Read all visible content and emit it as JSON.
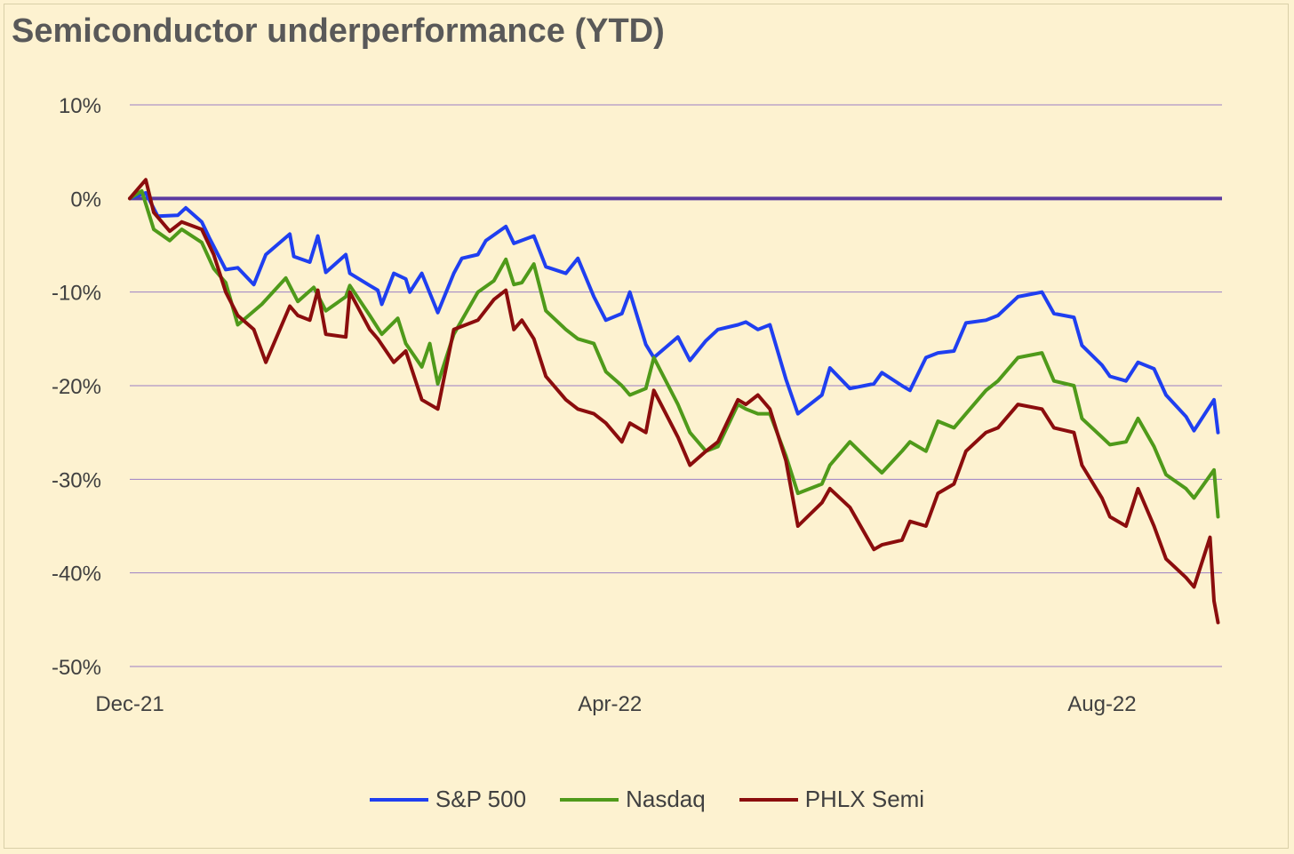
{
  "chart_data": {
    "type": "line",
    "title": "Semiconductor underperformance (YTD)",
    "xlabel": "",
    "ylabel": "",
    "ylim": [
      -50,
      10
    ],
    "y_ticks": [
      "10%",
      "0%",
      "-10%",
      "-20%",
      "-30%",
      "-40%",
      "-50%"
    ],
    "x_ticks": [
      "Dec-21",
      "Apr-22",
      "Aug-22"
    ],
    "x_range": [
      "2021-12-31",
      "2022-09-30"
    ],
    "baseline": 0,
    "grid": true,
    "legend_position": "bottom",
    "series": [
      {
        "name": "S&P 500",
        "color": "#1f3ff0",
        "points": [
          [
            "2021-12-31",
            0
          ],
          [
            "2022-01-04",
            0.6
          ],
          [
            "2022-01-07",
            -1.9
          ],
          [
            "2022-01-12",
            -1.8
          ],
          [
            "2022-01-14",
            -1.0
          ],
          [
            "2022-01-18",
            -2.5
          ],
          [
            "2022-01-20",
            -4.3
          ],
          [
            "2022-01-24",
            -7.6
          ],
          [
            "2022-01-27",
            -7.4
          ],
          [
            "2022-01-31",
            -9.2
          ],
          [
            "2022-02-03",
            -6.0
          ],
          [
            "2022-02-09",
            -3.8
          ],
          [
            "2022-02-10",
            -6.2
          ],
          [
            "2022-02-14",
            -6.8
          ],
          [
            "2022-02-16",
            -4.0
          ],
          [
            "2022-02-18",
            -7.9
          ],
          [
            "2022-02-23",
            -6.0
          ],
          [
            "2022-02-24",
            -8.0
          ],
          [
            "2022-03-01",
            -9.3
          ],
          [
            "2022-03-03",
            -9.8
          ],
          [
            "2022-03-04",
            -11.3
          ],
          [
            "2022-03-07",
            -8.0
          ],
          [
            "2022-03-10",
            -8.6
          ],
          [
            "2022-03-11",
            -10.0
          ],
          [
            "2022-03-14",
            -8.0
          ],
          [
            "2022-03-18",
            -12.2
          ],
          [
            "2022-03-22",
            -8.0
          ],
          [
            "2022-03-24",
            -6.4
          ],
          [
            "2022-03-28",
            -6.0
          ],
          [
            "2022-03-30",
            -4.5
          ],
          [
            "2022-04-04",
            -3.0
          ],
          [
            "2022-04-06",
            -4.8
          ],
          [
            "2022-04-11",
            -4.0
          ],
          [
            "2022-04-14",
            -7.3
          ],
          [
            "2022-04-19",
            -8.0
          ],
          [
            "2022-04-22",
            -6.4
          ],
          [
            "2022-04-26",
            -10.5
          ],
          [
            "2022-04-29",
            -13.0
          ],
          [
            "2022-05-03",
            -12.3
          ],
          [
            "2022-05-05",
            -10.0
          ],
          [
            "2022-05-09",
            -15.6
          ],
          [
            "2022-05-11",
            -17.0
          ],
          [
            "2022-05-17",
            -14.8
          ],
          [
            "2022-05-20",
            -17.3
          ],
          [
            "2022-05-24",
            -15.2
          ],
          [
            "2022-05-27",
            -14.0
          ],
          [
            "2022-06-01",
            -13.5
          ],
          [
            "2022-06-03",
            -13.2
          ],
          [
            "2022-06-06",
            -14.0
          ],
          [
            "2022-06-09",
            -13.5
          ],
          [
            "2022-06-13",
            -19.3
          ],
          [
            "2022-06-16",
            -23.0
          ],
          [
            "2022-06-22",
            -21.0
          ],
          [
            "2022-06-24",
            -18.1
          ],
          [
            "2022-06-29",
            -20.3
          ],
          [
            "2022-07-05",
            -19.8
          ],
          [
            "2022-07-07",
            -18.6
          ],
          [
            "2022-07-12",
            -20.0
          ],
          [
            "2022-07-14",
            -20.5
          ],
          [
            "2022-07-18",
            -17.0
          ],
          [
            "2022-07-21",
            -16.5
          ],
          [
            "2022-07-25",
            -16.3
          ],
          [
            "2022-07-28",
            -13.3
          ],
          [
            "2022-08-02",
            -13.0
          ],
          [
            "2022-08-05",
            -12.5
          ],
          [
            "2022-08-10",
            -10.5
          ],
          [
            "2022-08-16",
            -10.0
          ],
          [
            "2022-08-19",
            -12.3
          ],
          [
            "2022-08-24",
            -12.7
          ],
          [
            "2022-08-26",
            -15.7
          ],
          [
            "2022-08-31",
            -17.8
          ],
          [
            "2022-09-02",
            -19.0
          ],
          [
            "2022-09-06",
            -19.5
          ],
          [
            "2022-09-09",
            -17.5
          ],
          [
            "2022-09-13",
            -18.2
          ],
          [
            "2022-09-16",
            -21.0
          ],
          [
            "2022-09-21",
            -23.3
          ],
          [
            "2022-09-23",
            -24.8
          ],
          [
            "2022-09-28",
            -21.5
          ],
          [
            "2022-09-29",
            -25.0
          ]
        ]
      },
      {
        "name": "Nasdaq",
        "color": "#4f9a1a",
        "points": [
          [
            "2021-12-31",
            0
          ],
          [
            "2022-01-03",
            0.8
          ],
          [
            "2022-01-06",
            -3.3
          ],
          [
            "2022-01-10",
            -4.5
          ],
          [
            "2022-01-13",
            -3.3
          ],
          [
            "2022-01-18",
            -4.7
          ],
          [
            "2022-01-21",
            -7.5
          ],
          [
            "2022-01-24",
            -9.0
          ],
          [
            "2022-01-27",
            -13.5
          ],
          [
            "2022-02-02",
            -11.3
          ],
          [
            "2022-02-08",
            -8.5
          ],
          [
            "2022-02-11",
            -11.0
          ],
          [
            "2022-02-15",
            -9.5
          ],
          [
            "2022-02-18",
            -12.0
          ],
          [
            "2022-02-23",
            -10.5
          ],
          [
            "2022-02-24",
            -9.3
          ],
          [
            "2022-03-01",
            -12.5
          ],
          [
            "2022-03-04",
            -14.5
          ],
          [
            "2022-03-08",
            -12.8
          ],
          [
            "2022-03-10",
            -15.5
          ],
          [
            "2022-03-14",
            -18.0
          ],
          [
            "2022-03-16",
            -15.5
          ],
          [
            "2022-03-18",
            -19.8
          ],
          [
            "2022-03-22",
            -14.5
          ],
          [
            "2022-03-28",
            -10.0
          ],
          [
            "2022-04-01",
            -8.8
          ],
          [
            "2022-04-04",
            -6.5
          ],
          [
            "2022-04-06",
            -9.2
          ],
          [
            "2022-04-08",
            -9.0
          ],
          [
            "2022-04-11",
            -7.0
          ],
          [
            "2022-04-14",
            -12.0
          ],
          [
            "2022-04-19",
            -14.0
          ],
          [
            "2022-04-22",
            -15.0
          ],
          [
            "2022-04-26",
            -15.5
          ],
          [
            "2022-04-29",
            -18.5
          ],
          [
            "2022-05-03",
            -20.0
          ],
          [
            "2022-05-05",
            -21.0
          ],
          [
            "2022-05-09",
            -20.3
          ],
          [
            "2022-05-11",
            -17.0
          ],
          [
            "2022-05-17",
            -22.0
          ],
          [
            "2022-05-20",
            -25.0
          ],
          [
            "2022-05-24",
            -27.0
          ],
          [
            "2022-05-27",
            -26.5
          ],
          [
            "2022-06-01",
            -22.0
          ],
          [
            "2022-06-03",
            -22.5
          ],
          [
            "2022-06-06",
            -23.0
          ],
          [
            "2022-06-09",
            -23.0
          ],
          [
            "2022-06-13",
            -27.5
          ],
          [
            "2022-06-16",
            -31.5
          ],
          [
            "2022-06-22",
            -30.5
          ],
          [
            "2022-06-24",
            -28.5
          ],
          [
            "2022-06-29",
            -26.0
          ],
          [
            "2022-07-05",
            -28.5
          ],
          [
            "2022-07-07",
            -29.3
          ],
          [
            "2022-07-12",
            -27.0
          ],
          [
            "2022-07-14",
            -26.0
          ],
          [
            "2022-07-18",
            -27.0
          ],
          [
            "2022-07-21",
            -23.8
          ],
          [
            "2022-07-25",
            -24.5
          ],
          [
            "2022-07-28",
            -23.0
          ],
          [
            "2022-08-02",
            -20.5
          ],
          [
            "2022-08-05",
            -19.5
          ],
          [
            "2022-08-10",
            -17.0
          ],
          [
            "2022-08-16",
            -16.5
          ],
          [
            "2022-08-19",
            -19.5
          ],
          [
            "2022-08-24",
            -20.0
          ],
          [
            "2022-08-26",
            -23.5
          ],
          [
            "2022-08-31",
            -25.5
          ],
          [
            "2022-09-02",
            -26.3
          ],
          [
            "2022-09-06",
            -26.0
          ],
          [
            "2022-09-09",
            -23.5
          ],
          [
            "2022-09-13",
            -26.5
          ],
          [
            "2022-09-16",
            -29.5
          ],
          [
            "2022-09-21",
            -31.0
          ],
          [
            "2022-09-23",
            -32.0
          ],
          [
            "2022-09-28",
            -29.0
          ],
          [
            "2022-09-29",
            -34.0
          ]
        ]
      },
      {
        "name": "PHLX Semi",
        "color": "#8b0d0d",
        "points": [
          [
            "2021-12-31",
            0
          ],
          [
            "2022-01-04",
            2.0
          ],
          [
            "2022-01-06",
            -1.5
          ],
          [
            "2022-01-10",
            -3.5
          ],
          [
            "2022-01-13",
            -2.5
          ],
          [
            "2022-01-18",
            -3.3
          ],
          [
            "2022-01-21",
            -6.0
          ],
          [
            "2022-01-24",
            -10.0
          ],
          [
            "2022-01-27",
            -12.5
          ],
          [
            "2022-01-31",
            -14.0
          ],
          [
            "2022-02-03",
            -17.5
          ],
          [
            "2022-02-09",
            -11.5
          ],
          [
            "2022-02-11",
            -12.5
          ],
          [
            "2022-02-14",
            -13.0
          ],
          [
            "2022-02-16",
            -9.8
          ],
          [
            "2022-02-18",
            -14.5
          ],
          [
            "2022-02-23",
            -14.8
          ],
          [
            "2022-02-24",
            -10.0
          ],
          [
            "2022-03-01",
            -14.0
          ],
          [
            "2022-03-03",
            -15.0
          ],
          [
            "2022-03-07",
            -17.5
          ],
          [
            "2022-03-10",
            -16.3
          ],
          [
            "2022-03-14",
            -21.5
          ],
          [
            "2022-03-18",
            -22.5
          ],
          [
            "2022-03-22",
            -14.0
          ],
          [
            "2022-03-28",
            -13.0
          ],
          [
            "2022-04-01",
            -10.8
          ],
          [
            "2022-04-04",
            -9.8
          ],
          [
            "2022-04-06",
            -14.0
          ],
          [
            "2022-04-08",
            -13.0
          ],
          [
            "2022-04-11",
            -15.0
          ],
          [
            "2022-04-14",
            -19.0
          ],
          [
            "2022-04-19",
            -21.5
          ],
          [
            "2022-04-22",
            -22.5
          ],
          [
            "2022-04-26",
            -23.0
          ],
          [
            "2022-04-29",
            -24.0
          ],
          [
            "2022-05-03",
            -26.0
          ],
          [
            "2022-05-05",
            -24.0
          ],
          [
            "2022-05-09",
            -25.0
          ],
          [
            "2022-05-11",
            -20.5
          ],
          [
            "2022-05-17",
            -25.5
          ],
          [
            "2022-05-20",
            -28.5
          ],
          [
            "2022-05-24",
            -27.0
          ],
          [
            "2022-05-27",
            -26.0
          ],
          [
            "2022-06-01",
            -21.5
          ],
          [
            "2022-06-03",
            -22.0
          ],
          [
            "2022-06-06",
            -21.0
          ],
          [
            "2022-06-09",
            -22.5
          ],
          [
            "2022-06-13",
            -28.0
          ],
          [
            "2022-06-16",
            -35.0
          ],
          [
            "2022-06-22",
            -32.5
          ],
          [
            "2022-06-24",
            -31.0
          ],
          [
            "2022-06-29",
            -33.0
          ],
          [
            "2022-07-05",
            -37.5
          ],
          [
            "2022-07-07",
            -37.0
          ],
          [
            "2022-07-12",
            -36.5
          ],
          [
            "2022-07-14",
            -34.5
          ],
          [
            "2022-07-18",
            -35.0
          ],
          [
            "2022-07-21",
            -31.5
          ],
          [
            "2022-07-25",
            -30.5
          ],
          [
            "2022-07-28",
            -27.0
          ],
          [
            "2022-08-02",
            -25.0
          ],
          [
            "2022-08-05",
            -24.5
          ],
          [
            "2022-08-10",
            -22.0
          ],
          [
            "2022-08-16",
            -22.5
          ],
          [
            "2022-08-19",
            -24.5
          ],
          [
            "2022-08-24",
            -25.0
          ],
          [
            "2022-08-26",
            -28.5
          ],
          [
            "2022-08-31",
            -32.0
          ],
          [
            "2022-09-02",
            -34.0
          ],
          [
            "2022-09-06",
            -35.0
          ],
          [
            "2022-09-09",
            -31.0
          ],
          [
            "2022-09-13",
            -35.0
          ],
          [
            "2022-09-16",
            -38.5
          ],
          [
            "2022-09-21",
            -40.5
          ],
          [
            "2022-09-23",
            -41.5
          ],
          [
            "2022-09-27",
            -36.2
          ],
          [
            "2022-09-28",
            -43.0
          ],
          [
            "2022-09-29",
            -45.3
          ]
        ]
      }
    ]
  }
}
